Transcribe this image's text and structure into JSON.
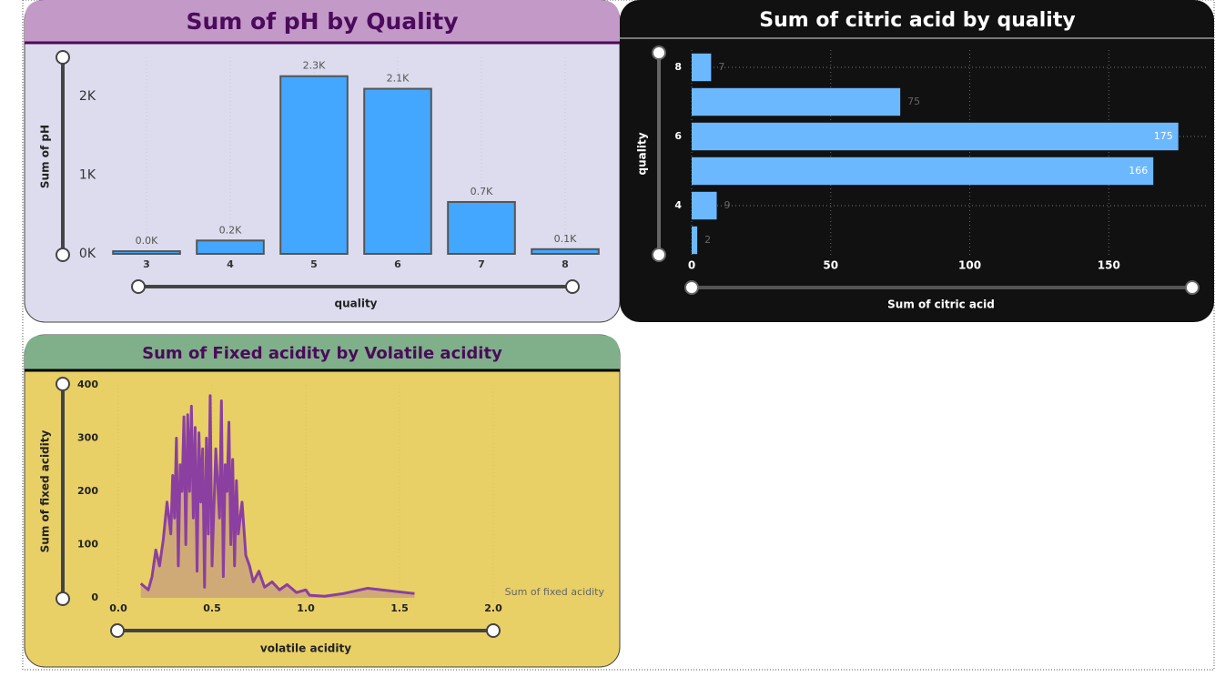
{
  "chart_data": [
    {
      "type": "bar",
      "title": "Sum of pH by Quality",
      "x_label": "quality",
      "y_label": "Sum of pH",
      "categories": [
        "3",
        "4",
        "5",
        "6",
        "7",
        "8"
      ],
      "values": [
        34,
        170,
        2260,
        2100,
        660,
        60
      ],
      "value_labels": [
        "0.0K",
        "0.2K",
        "2.3K",
        "2.1K",
        "0.7K",
        "0.1K"
      ],
      "color": "#44a7ff",
      "ylim": [
        0,
        2500
      ],
      "yticks": [
        {
          "value": 0,
          "label": "0K"
        },
        {
          "value": 1000,
          "label": "1K"
        },
        {
          "value": 2000,
          "label": "2K"
        }
      ],
      "grid": false
    },
    {
      "type": "hbar",
      "title": "Sum of citric acid by quality",
      "x_label": "Sum of citric acid",
      "y_label": "quality",
      "categories": [
        "8",
        null,
        "6",
        null,
        "4",
        null
      ],
      "values": [
        7,
        75,
        175,
        166,
        9,
        2
      ],
      "color": "#6cb8ff",
      "xlim": [
        0,
        180
      ],
      "xticks": [
        0,
        50,
        100,
        150
      ],
      "grid": true
    },
    {
      "type": "area",
      "title": "Sum of Fixed acidity by Volatile acidity",
      "x_label": "volatile acidity",
      "y_label": "Sum of fixed acidity",
      "x": [
        0.12,
        0.16,
        0.18,
        0.2,
        0.22,
        0.24,
        0.26,
        0.28,
        0.29,
        0.3,
        0.31,
        0.32,
        0.33,
        0.34,
        0.35,
        0.36,
        0.37,
        0.38,
        0.39,
        0.4,
        0.41,
        0.42,
        0.43,
        0.44,
        0.45,
        0.46,
        0.47,
        0.48,
        0.49,
        0.5,
        0.52,
        0.54,
        0.55,
        0.56,
        0.57,
        0.58,
        0.59,
        0.6,
        0.61,
        0.62,
        0.63,
        0.64,
        0.66,
        0.68,
        0.7,
        0.72,
        0.75,
        0.78,
        0.82,
        0.86,
        0.9,
        0.95,
        1.0,
        1.02,
        1.1,
        1.2,
        1.33,
        1.58
      ],
      "series": [
        {
          "name": "Sum of fixed acidity",
          "color": "#8b3fa0",
          "values": [
            27,
            15,
            40,
            90,
            60,
            110,
            180,
            120,
            230,
            150,
            300,
            60,
            250,
            200,
            340,
            100,
            344,
            200,
            360,
            150,
            320,
            50,
            310,
            180,
            280,
            20,
            300,
            120,
            380,
            60,
            280,
            150,
            370,
            40,
            250,
            200,
            330,
            100,
            260,
            60,
            220,
            120,
            180,
            80,
            60,
            30,
            50,
            20,
            30,
            15,
            25,
            10,
            15,
            5,
            3,
            8,
            18,
            8
          ]
        }
      ],
      "xlim": [
        0,
        2
      ],
      "xticks": [
        {
          "value": 0,
          "label": "0.0"
        },
        0.5,
        {
          "value": 1,
          "label": "1.0"
        },
        1.5,
        {
          "value": 2,
          "label": "2.0"
        }
      ],
      "ylim": [
        0,
        400
      ],
      "yticks": [
        0,
        100,
        200,
        300,
        400
      ],
      "grid": true
    }
  ]
}
